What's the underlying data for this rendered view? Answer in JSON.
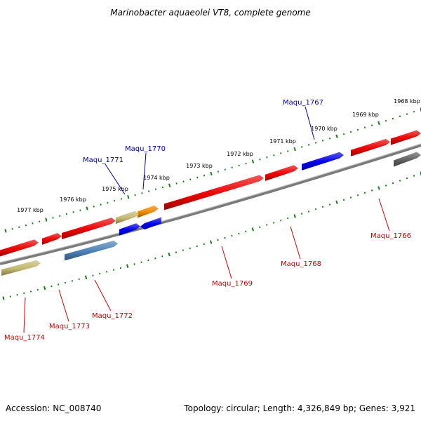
{
  "title": "Marinobacter aquaeolei VT8, complete genome",
  "footer": {
    "accession": "Accession: NC_008740",
    "summary": "Topology: circular; Length: 4,326,849 bp; Genes: 3,921"
  },
  "colors": {
    "backbone": "#7a7a7a",
    "tick": "#1a7a1a",
    "label_top": "#0000aa",
    "label_bottom": "#cc0000",
    "red": "#ee0000",
    "blue": "#0000ee",
    "steel": "#4a7fb8",
    "khaki": "#c2b870",
    "orange": "#f08800",
    "gray": "#606060"
  },
  "scale": {
    "labels": [
      "1968 kbp",
      "1969 kbp",
      "1970 kbp",
      "1971 kbp",
      "1972 kbp",
      "1973 kbp",
      "1974 kbp",
      "1975 kbp",
      "1976 kbp",
      "1977 kbp"
    ]
  },
  "top_labels": [
    {
      "name": "Maqu_1767"
    },
    {
      "name": "Maqu_1770"
    },
    {
      "name": "Maqu_1771"
    }
  ],
  "bottom_labels": [
    {
      "name": "Maqu_1766"
    },
    {
      "name": "Maqu_1768"
    },
    {
      "name": "Maqu_1769"
    },
    {
      "name": "Maqu_1772"
    },
    {
      "name": "Maqu_1773"
    },
    {
      "name": "Maqu_1774"
    }
  ],
  "features": [
    {
      "label": "Maqu_1766",
      "color": "red"
    },
    {
      "label": "Maqu_1767",
      "color": "blue"
    },
    {
      "label": "Maqu_1768",
      "color": "red"
    },
    {
      "label": "Maqu_1769",
      "color": "red"
    },
    {
      "label": "Maqu_1770",
      "color": "orange"
    },
    {
      "label": "Maqu_1771",
      "color": "khaki"
    },
    {
      "label": "Maqu_1772",
      "color": "steel"
    },
    {
      "label": "Maqu_1773",
      "color": "red"
    },
    {
      "label": "Maqu_1774",
      "color": "khaki"
    }
  ]
}
